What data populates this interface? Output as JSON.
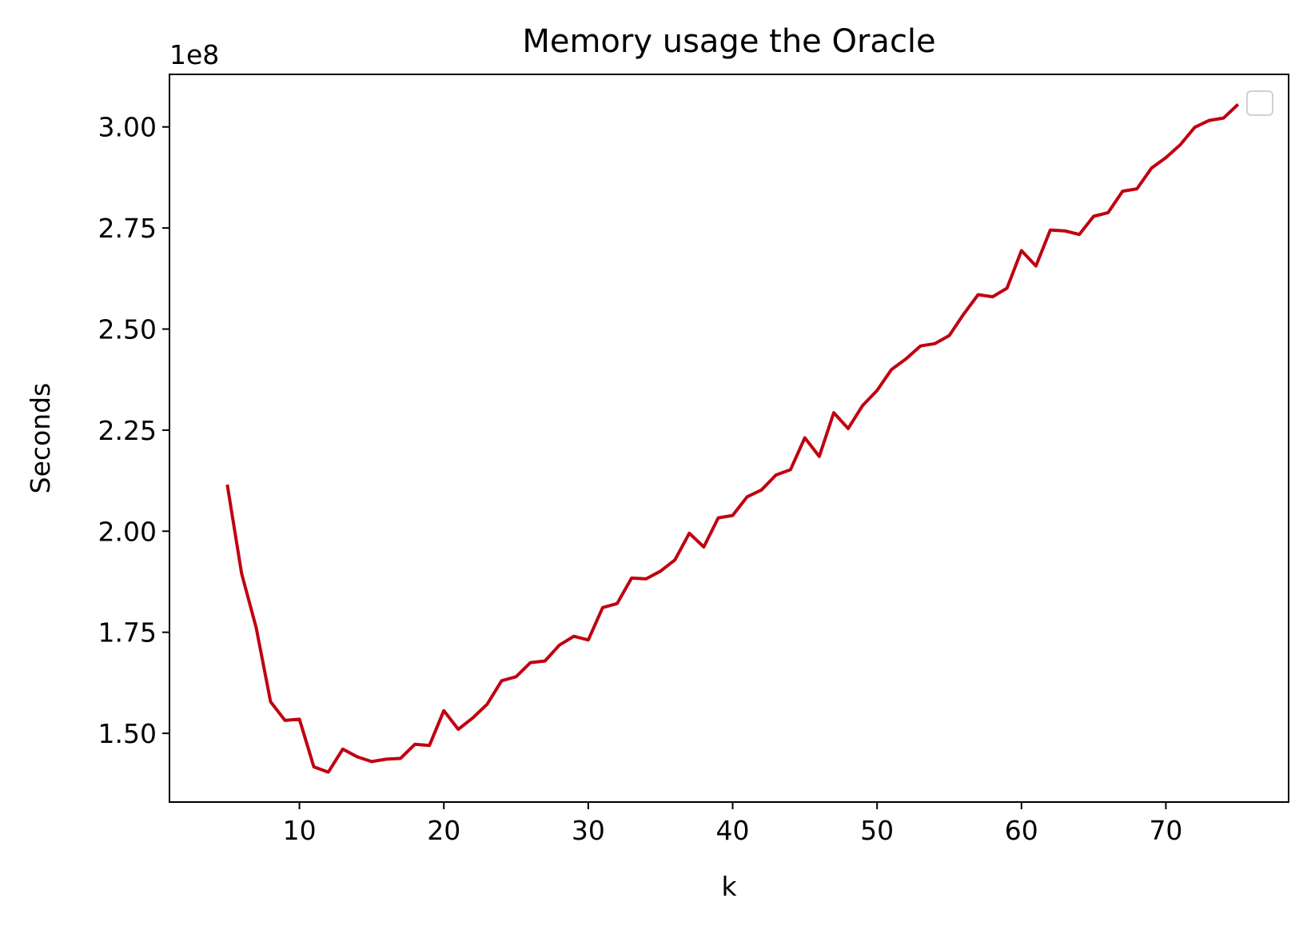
{
  "chart_data": {
    "type": "line",
    "title": "Memory usage the Oracle",
    "xlabel": "k",
    "ylabel": "Seconds",
    "y_offset_label": "1e8",
    "xlim": [
      1,
      78.5
    ],
    "ylim": [
      1.33,
      3.13
    ],
    "x_ticks": [
      10,
      20,
      30,
      40,
      50,
      60,
      70
    ],
    "x_tick_labels": [
      "10",
      "20",
      "30",
      "40",
      "50",
      "60",
      "70"
    ],
    "y_ticks": [
      1.5,
      1.75,
      2.0,
      2.25,
      2.5,
      2.75,
      3.0
    ],
    "y_tick_labels": [
      "1.50",
      "1.75",
      "2.00",
      "2.25",
      "2.50",
      "2.75",
      "3.00"
    ],
    "grid": false,
    "legend": "top-right",
    "series": [
      {
        "color": "#c00010",
        "x": [
          5,
          6,
          7,
          8,
          9,
          10,
          11,
          12,
          13,
          14,
          15,
          16,
          17,
          18,
          19,
          20,
          21,
          22,
          23,
          24,
          25,
          26,
          27,
          28,
          29,
          30,
          31,
          32,
          33,
          34,
          35,
          36,
          37,
          38,
          39,
          40,
          41,
          42,
          43,
          44,
          45,
          46,
          47,
          48,
          49,
          50,
          51,
          52,
          53,
          54,
          55,
          56,
          57,
          58,
          59,
          60,
          61,
          62,
          63,
          64,
          65,
          66,
          67,
          68,
          69,
          70,
          71,
          72,
          73,
          74,
          75
        ],
        "y": [
          2.115,
          1.895,
          1.762,
          1.578,
          1.532,
          1.535,
          1.417,
          1.404,
          1.461,
          1.442,
          1.43,
          1.436,
          1.438,
          1.473,
          1.47,
          1.556,
          1.51,
          1.538,
          1.572,
          1.63,
          1.64,
          1.675,
          1.679,
          1.718,
          1.74,
          1.731,
          1.811,
          1.821,
          1.884,
          1.882,
          1.901,
          1.929,
          1.995,
          1.961,
          2.033,
          2.039,
          2.085,
          2.102,
          2.139,
          2.152,
          2.231,
          2.185,
          2.293,
          2.254,
          2.311,
          2.348,
          2.4,
          2.426,
          2.458,
          2.464,
          2.484,
          2.537,
          2.585,
          2.58,
          2.601,
          2.694,
          2.656,
          2.745,
          2.743,
          2.734,
          2.779,
          2.788,
          2.841,
          2.847,
          2.898,
          2.924,
          2.956,
          2.999,
          3.016,
          3.022,
          3.056
        ]
      }
    ]
  }
}
